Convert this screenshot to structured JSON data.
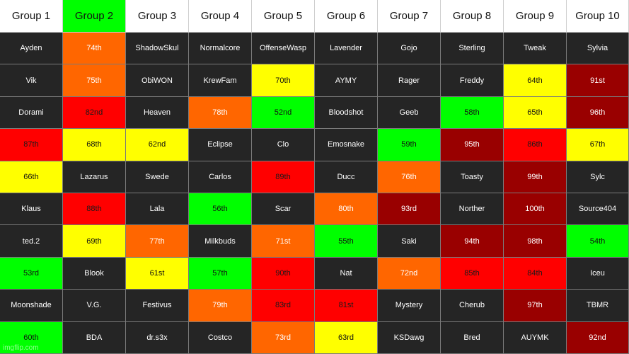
{
  "headers": [
    {
      "label": "Group 1",
      "color": "#ffffff"
    },
    {
      "label": "Group 2",
      "color": "#00ff00"
    },
    {
      "label": "Group 3",
      "color": "#ffffff"
    },
    {
      "label": "Group 4",
      "color": "#ffffff"
    },
    {
      "label": "Group 5",
      "color": "#ffffff"
    },
    {
      "label": "Group 6",
      "color": "#ffffff"
    },
    {
      "label": "Group 7",
      "color": "#ffffff"
    },
    {
      "label": "Group 8",
      "color": "#ffffff"
    },
    {
      "label": "Group 9",
      "color": "#ffffff"
    },
    {
      "label": "Group 10",
      "color": "#ffffff"
    }
  ],
  "palette": {
    "dark": "#252525",
    "orange": "#ff6600",
    "yellow": "#ffff00",
    "green": "#00ff00",
    "red": "#ff0000",
    "dkred": "#990000"
  },
  "rows": [
    [
      {
        "text": "Ayden",
        "color": "dark"
      },
      {
        "text": "74th",
        "color": "orange"
      },
      {
        "text": "ShadowSkul",
        "color": "dark"
      },
      {
        "text": "Normalcore",
        "color": "dark"
      },
      {
        "text": "OffenseWasp",
        "color": "dark"
      },
      {
        "text": "Lavender",
        "color": "dark"
      },
      {
        "text": "Gojo",
        "color": "dark"
      },
      {
        "text": "Sterling",
        "color": "dark"
      },
      {
        "text": "Tweak",
        "color": "dark"
      },
      {
        "text": "Sylvia",
        "color": "dark"
      }
    ],
    [
      {
        "text": "Vik",
        "color": "dark"
      },
      {
        "text": "75th",
        "color": "orange"
      },
      {
        "text": "ObiWON",
        "color": "dark"
      },
      {
        "text": "KrewFam",
        "color": "dark"
      },
      {
        "text": "70th",
        "color": "yellow"
      },
      {
        "text": "AYMY",
        "color": "dark"
      },
      {
        "text": "Rager",
        "color": "dark"
      },
      {
        "text": "Freddy",
        "color": "dark"
      },
      {
        "text": "64th",
        "color": "yellow"
      },
      {
        "text": "91st",
        "color": "dkred"
      }
    ],
    [
      {
        "text": "Dorami",
        "color": "dark"
      },
      {
        "text": "82nd",
        "color": "red"
      },
      {
        "text": "Heaven",
        "color": "dark"
      },
      {
        "text": "78th",
        "color": "orange"
      },
      {
        "text": "52nd",
        "color": "green"
      },
      {
        "text": "Bloodshot",
        "color": "dark"
      },
      {
        "text": "Geeb",
        "color": "dark"
      },
      {
        "text": "58th",
        "color": "green"
      },
      {
        "text": "65th",
        "color": "yellow"
      },
      {
        "text": "96th",
        "color": "dkred"
      }
    ],
    [
      {
        "text": "87th",
        "color": "red"
      },
      {
        "text": "68th",
        "color": "yellow"
      },
      {
        "text": "62nd",
        "color": "yellow"
      },
      {
        "text": "Eclipse",
        "color": "dark"
      },
      {
        "text": "Clo",
        "color": "dark"
      },
      {
        "text": "Emosnake",
        "color": "dark"
      },
      {
        "text": "59th",
        "color": "green"
      },
      {
        "text": "95th",
        "color": "dkred"
      },
      {
        "text": "86th",
        "color": "red"
      },
      {
        "text": "67th",
        "color": "yellow"
      }
    ],
    [
      {
        "text": "66th",
        "color": "yellow"
      },
      {
        "text": "Lazarus",
        "color": "dark"
      },
      {
        "text": "Swede",
        "color": "dark"
      },
      {
        "text": "Carlos",
        "color": "dark"
      },
      {
        "text": "89th",
        "color": "red"
      },
      {
        "text": "Ducc",
        "color": "dark"
      },
      {
        "text": "76th",
        "color": "orange"
      },
      {
        "text": "Toasty",
        "color": "dark"
      },
      {
        "text": "99th",
        "color": "dkred"
      },
      {
        "text": "Sylc",
        "color": "dark"
      }
    ],
    [
      {
        "text": "Klaus",
        "color": "dark"
      },
      {
        "text": "88th",
        "color": "red"
      },
      {
        "text": "Lala",
        "color": "dark"
      },
      {
        "text": "56th",
        "color": "green"
      },
      {
        "text": "Scar",
        "color": "dark"
      },
      {
        "text": "80th",
        "color": "orange"
      },
      {
        "text": "93rd",
        "color": "dkred"
      },
      {
        "text": "Norther",
        "color": "dark"
      },
      {
        "text": "100th",
        "color": "dkred"
      },
      {
        "text": "Source404",
        "color": "dark"
      }
    ],
    [
      {
        "text": "ted.2",
        "color": "dark"
      },
      {
        "text": "69th",
        "color": "yellow"
      },
      {
        "text": "77th",
        "color": "orange"
      },
      {
        "text": "Milkbuds",
        "color": "dark"
      },
      {
        "text": "71st",
        "color": "orange"
      },
      {
        "text": "55th",
        "color": "green"
      },
      {
        "text": "Saki",
        "color": "dark"
      },
      {
        "text": "94th",
        "color": "dkred"
      },
      {
        "text": "98th",
        "color": "dkred"
      },
      {
        "text": "54th",
        "color": "green"
      }
    ],
    [
      {
        "text": "53rd",
        "color": "green"
      },
      {
        "text": "Blook",
        "color": "dark"
      },
      {
        "text": "61st",
        "color": "yellow"
      },
      {
        "text": "57th",
        "color": "green"
      },
      {
        "text": "90th",
        "color": "red"
      },
      {
        "text": "Nat",
        "color": "dark"
      },
      {
        "text": "72nd",
        "color": "orange"
      },
      {
        "text": "85th",
        "color": "red"
      },
      {
        "text": "84th",
        "color": "red"
      },
      {
        "text": "Iceu",
        "color": "dark"
      }
    ],
    [
      {
        "text": "Moonshade",
        "color": "dark"
      },
      {
        "text": "V.G.",
        "color": "dark"
      },
      {
        "text": "Festivus",
        "color": "dark"
      },
      {
        "text": "79th",
        "color": "orange"
      },
      {
        "text": "83rd",
        "color": "red"
      },
      {
        "text": "81st",
        "color": "red"
      },
      {
        "text": "Mystery",
        "color": "dark"
      },
      {
        "text": "Cherub",
        "color": "dark"
      },
      {
        "text": "97th",
        "color": "dkred"
      },
      {
        "text": "TBMR",
        "color": "dark"
      }
    ],
    [
      {
        "text": "60th",
        "color": "green"
      },
      {
        "text": "BDA",
        "color": "dark"
      },
      {
        "text": "dr.s3x",
        "color": "dark"
      },
      {
        "text": "Costco",
        "color": "dark"
      },
      {
        "text": "73rd",
        "color": "orange"
      },
      {
        "text": "63rd",
        "color": "yellow"
      },
      {
        "text": "KSDawg",
        "color": "dark"
      },
      {
        "text": "Bred",
        "color": "dark"
      },
      {
        "text": "AUYMK",
        "color": "dark"
      },
      {
        "text": "92nd",
        "color": "dkred"
      }
    ]
  ],
  "watermark": "imgflip.com"
}
